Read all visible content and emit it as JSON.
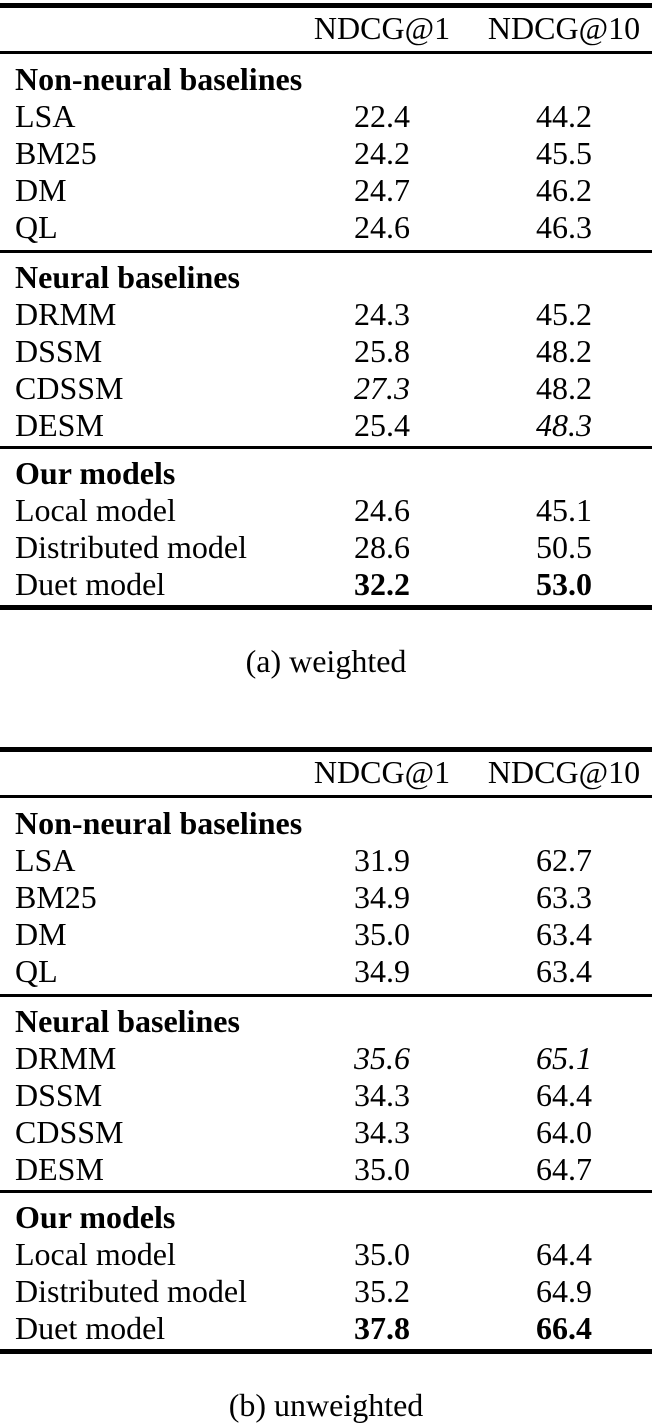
{
  "page": {
    "background": "#ffffff",
    "text_color": "#000000"
  },
  "tables": [
    {
      "caption": "(a) weighted",
      "columns": [
        "NDCG@1",
        "NDCG@10"
      ],
      "sections": [
        {
          "header": "Non-neural baselines",
          "rows": [
            {
              "name": "LSA",
              "v1": "22.4",
              "v10": "44.2"
            },
            {
              "name": "BM25",
              "v1": "24.2",
              "v10": "45.5"
            },
            {
              "name": "DM",
              "v1": "24.7",
              "v10": "46.2"
            },
            {
              "name": "QL",
              "v1": "24.6",
              "v10": "46.3"
            }
          ]
        },
        {
          "header": "Neural baselines",
          "rows": [
            {
              "name": "DRMM",
              "v1": "24.3",
              "v10": "45.2"
            },
            {
              "name": "DSSM",
              "v1": "25.8",
              "v10": "48.2"
            },
            {
              "name": "CDSSM",
              "v1": "27.3",
              "v1_style": "italic",
              "v10": "48.2"
            },
            {
              "name": "DESM",
              "v1": "25.4",
              "v10": "48.3",
              "v10_style": "italic"
            }
          ]
        },
        {
          "header": "Our models",
          "rows": [
            {
              "name": "Local model",
              "v1": "24.6",
              "v10": "45.1"
            },
            {
              "name": "Distributed model",
              "v1": "28.6",
              "v10": "50.5"
            },
            {
              "name": "Duet model",
              "v1": "32.2",
              "v1_style": "bold",
              "v10": "53.0",
              "v10_style": "bold"
            }
          ]
        }
      ]
    },
    {
      "caption": "(b) unweighted",
      "columns": [
        "NDCG@1",
        "NDCG@10"
      ],
      "sections": [
        {
          "header": "Non-neural baselines",
          "rows": [
            {
              "name": "LSA",
              "v1": "31.9",
              "v10": "62.7"
            },
            {
              "name": "BM25",
              "v1": "34.9",
              "v10": "63.3"
            },
            {
              "name": "DM",
              "v1": "35.0",
              "v10": "63.4"
            },
            {
              "name": "QL",
              "v1": "34.9",
              "v10": "63.4"
            }
          ]
        },
        {
          "header": "Neural baselines",
          "rows": [
            {
              "name": "DRMM",
              "v1": "35.6",
              "v1_style": "italic",
              "v10": "65.1",
              "v10_style": "italic"
            },
            {
              "name": "DSSM",
              "v1": "34.3",
              "v10": "64.4"
            },
            {
              "name": "CDSSM",
              "v1": "34.3",
              "v10": "64.0"
            },
            {
              "name": "DESM",
              "v1": "35.0",
              "v10": "64.7"
            }
          ]
        },
        {
          "header": "Our models",
          "rows": [
            {
              "name": "Local model",
              "v1": "35.0",
              "v10": "64.4"
            },
            {
              "name": "Distributed model",
              "v1": "35.2",
              "v10": "64.9"
            },
            {
              "name": "Duet model",
              "v1": "37.8",
              "v1_style": "bold",
              "v10": "66.4",
              "v10_style": "bold"
            }
          ]
        }
      ]
    }
  ]
}
